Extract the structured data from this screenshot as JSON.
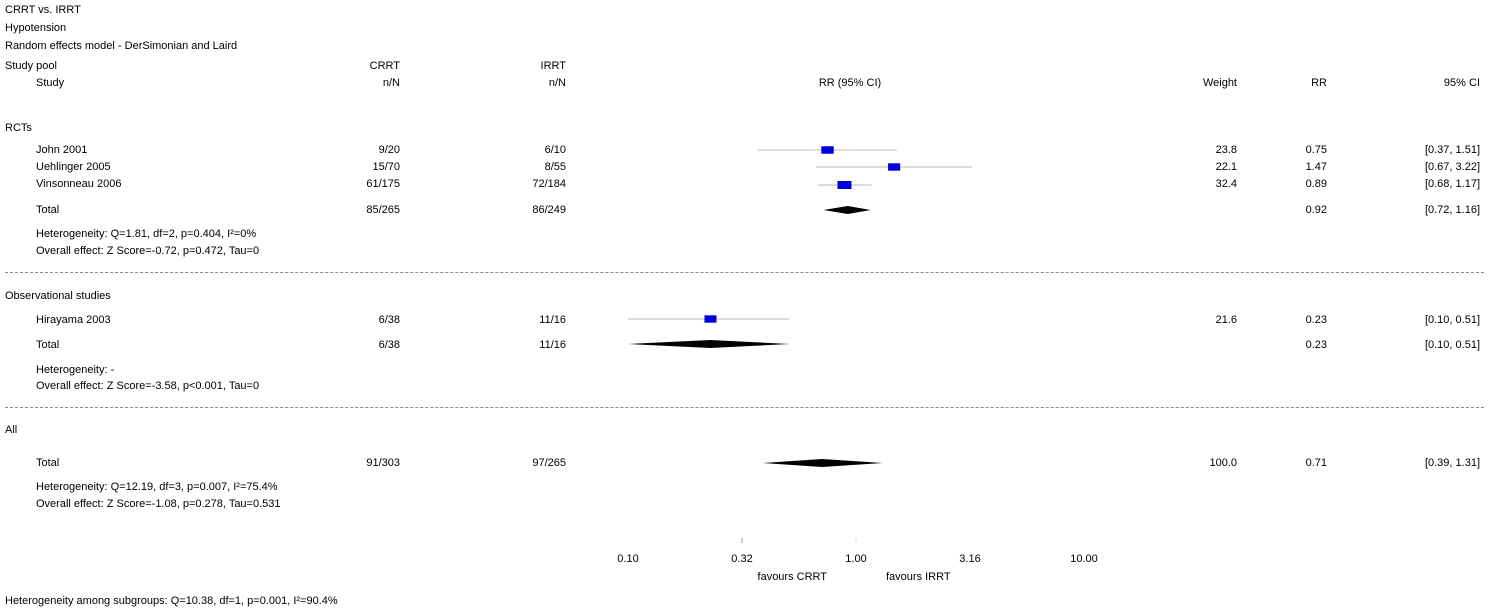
{
  "header": {
    "line1": "CRRT vs. IRRT",
    "line2": "Hypotension",
    "line3": "Random effects model - DerSimonian and Laird"
  },
  "columns": {
    "study_pool": "Study pool",
    "study": "Study",
    "crrt": "CRRT",
    "crrt_sub": "n/N",
    "irrt": "IRRT",
    "irrt_sub": "n/N",
    "rr_ci": "RR (95% CI)",
    "weight": "Weight",
    "rr": "RR",
    "ci": "95% CI"
  },
  "groups": {
    "rcts": {
      "title": "RCTs",
      "studies": [
        {
          "name": "John 2001",
          "crrt": "9/20",
          "irrt": "6/10",
          "weight": "23.8",
          "rr": "0.75",
          "ci": "[0.37, 1.51]"
        },
        {
          "name": "Uehlinger 2005",
          "crrt": "15/70",
          "irrt": "8/55",
          "weight": "22.1",
          "rr": "1.47",
          "ci": "[0.67, 3.22]"
        },
        {
          "name": "Vinsonneau 2006",
          "crrt": "61/175",
          "irrt": "72/184",
          "weight": "32.4",
          "rr": "0.89",
          "ci": "[0.68, 1.17]"
        }
      ],
      "total": {
        "label": "Total",
        "crrt": "85/265",
        "irrt": "86/249",
        "rr": "0.92",
        "ci": "[0.72, 1.16]"
      },
      "heterogeneity": "Heterogeneity: Q=1.81, df=2, p=0.404, I²=0%",
      "overall": "Overall effect: Z Score=-0.72, p=0.472, Tau=0"
    },
    "obs": {
      "title": "Observational studies",
      "studies": [
        {
          "name": "Hirayama 2003",
          "crrt": "6/38",
          "irrt": "11/16",
          "weight": "21.6",
          "rr": "0.23",
          "ci": "[0.10, 0.51]"
        }
      ],
      "total": {
        "label": "Total",
        "crrt": "6/38",
        "irrt": "11/16",
        "rr": "0.23",
        "ci": "[0.10, 0.51]"
      },
      "heterogeneity": "Heterogeneity: -",
      "overall": "Overall effect: Z Score=-3.58, p<0.001, Tau=0"
    },
    "all": {
      "title": "All",
      "total": {
        "label": "Total",
        "crrt": "91/303",
        "irrt": "97/265",
        "weight": "100.0",
        "rr": "0.71",
        "ci": "[0.39, 1.31]"
      },
      "heterogeneity": "Heterogeneity: Q=12.19, df=3, p=0.007, I²=75.4%",
      "overall": "Overall effect: Z Score=-1.08, p=0.278, Tau=0.531"
    }
  },
  "footer": {
    "subgroups": "Heterogeneity among subgroups: Q=10.38, df=1, p=0.001, I²=90.4%"
  },
  "axis": {
    "scale": "log",
    "ticks": [
      "0.10",
      "0.32",
      "1.00",
      "3.16",
      "10.00"
    ],
    "favours_left": "favours CRRT",
    "favours_right": "favours IRRT"
  },
  "colors": {
    "study_marker": "#0000dd",
    "pooled_diamond": "#000000"
  },
  "chart_data": {
    "type": "forest",
    "measure": "RR",
    "x_scale": "log",
    "xlim": [
      0.1,
      10
    ],
    "studies": [
      {
        "group": "RCTs",
        "name": "John 2001",
        "rr": 0.75,
        "lo": 0.37,
        "hi": 1.51,
        "weight": 23.8
      },
      {
        "group": "RCTs",
        "name": "Uehlinger 2005",
        "rr": 1.47,
        "lo": 0.67,
        "hi": 3.22,
        "weight": 22.1
      },
      {
        "group": "RCTs",
        "name": "Vinsonneau 2006",
        "rr": 0.89,
        "lo": 0.68,
        "hi": 1.17,
        "weight": 32.4
      },
      {
        "group": "Observational studies",
        "name": "Hirayama 2003",
        "rr": 0.23,
        "lo": 0.1,
        "hi": 0.51,
        "weight": 21.6
      }
    ],
    "pooled": [
      {
        "group": "RCTs",
        "rr": 0.92,
        "lo": 0.72,
        "hi": 1.16
      },
      {
        "group": "Observational studies",
        "rr": 0.23,
        "lo": 0.1,
        "hi": 0.51
      },
      {
        "group": "All",
        "rr": 0.71,
        "lo": 0.39,
        "hi": 1.31
      }
    ]
  }
}
